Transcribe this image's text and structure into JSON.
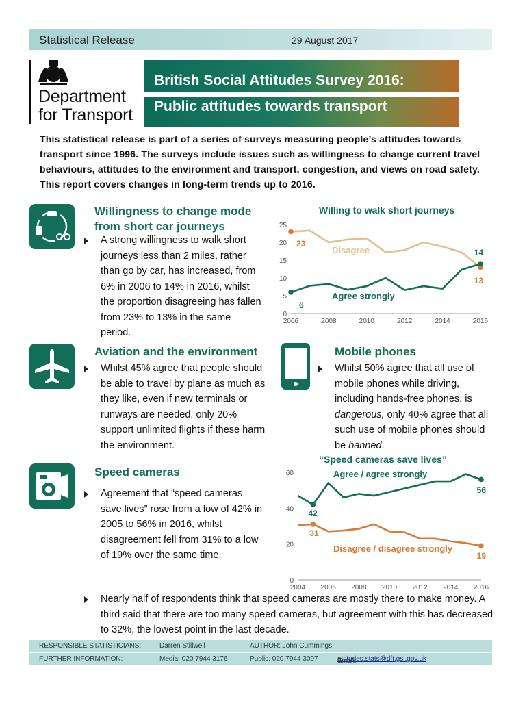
{
  "header": {
    "release": "Statistical Release",
    "date": "29 August 2017"
  },
  "logo": {
    "line1": "Department",
    "line2": "for Transport"
  },
  "title": {
    "line1": "British Social Attitudes Survey 2016:",
    "line2": "Public attitudes towards transport"
  },
  "intro": "This statistical release is part of a series of surveys measuring people’s attitudes towards transport since 1996. The surveys include issues such as willingness to change current travel behaviours, attitudes to the environment and transport, congestion, and views on road safety. This report covers changes in long-term trends up to 2016.",
  "sections": {
    "mode": {
      "title": "Willingness to change mode from short car journeys",
      "bullet": "A strong willingness to walk short journeys less than 2 miles, rather than go by car, has increased, from 6% in 2006 to 14% in 2016, whilst the proportion disagreeing has fallen from 23% to 13% in the same period."
    },
    "aviation": {
      "title": "Aviation and the environment",
      "bullet": "Whilst 45% agree that people should be able to travel by plane as much as they like, even if new terminals or runways are needed, only 20% support unlimited flights if these harm the environment."
    },
    "mobile": {
      "title": "Mobile phones",
      "bullet_a": "Whilst 50% agree that all use of mobile phones while driving, including hands-free phones, is ",
      "em1": "dangerous,",
      "bullet_b": " only 40% agree that all such use of mobile phones should be ",
      "em2": "banned",
      "bullet_c": "."
    },
    "speed": {
      "title": "Speed cameras",
      "bullet": "Agreement that “speed cameras save lives” rose from a low of 42% in 2005 to 56% in 2016, whilst disagreement fell from 31% to a low of 19% over the same time."
    },
    "final": "Nearly half of respondents think that speed cameras are mostly there to make money. A third said that there are too many speed cameras, but agreement with this has decreased to 32%, the lowest point in the last decade."
  },
  "footer": {
    "resp_label": "RESPONSIBLE STATISTICIANS:",
    "resp_name": "Darren Stillwell",
    "author": "AUTHOR: John Cummings",
    "info_label": "FURTHER INFORMATION:",
    "media": "Media: 020 7944 3176",
    "public": "Public: 020 7944 3097",
    "email_label": "Email: ",
    "email": "attitudes.stats@dft.gsi.gov.uk"
  },
  "colors": {
    "green": "#136e59",
    "orange": "#d77b36",
    "tan": "#e3c08a"
  },
  "chart_data": [
    {
      "type": "line",
      "title": "Willing to walk short journeys",
      "x": [
        2006,
        2007,
        2008,
        2009,
        2010,
        2011,
        2012,
        2013,
        2014,
        2015,
        2016
      ],
      "ylim": [
        0,
        25
      ],
      "yticks": [
        0,
        5,
        10,
        15,
        20,
        25
      ],
      "xticks": [
        2006,
        2008,
        2010,
        2012,
        2014,
        2016
      ],
      "series": [
        {
          "name": "Disagree",
          "values": [
            23,
            23.3,
            20,
            20.8,
            21.1,
            17.2,
            17.8,
            20,
            18.8,
            17.2,
            13
          ]
        },
        {
          "name": "Agree strongly",
          "values": [
            6,
            7.8,
            8.3,
            6.7,
            7.7,
            10,
            6.6,
            7.7,
            7,
            12.3,
            14
          ]
        }
      ],
      "labels": {
        "d_start": "23",
        "d_end": "13",
        "a_start": "6",
        "a_end": "14"
      }
    },
    {
      "type": "line",
      "title": "“Speed cameras save lives”",
      "x": [
        2004,
        2005,
        2006,
        2007,
        2008,
        2009,
        2010,
        2011,
        2012,
        2013,
        2014,
        2015,
        2016
      ],
      "ylim": [
        0,
        60
      ],
      "yticks": [
        0,
        20,
        40,
        60
      ],
      "xticks": [
        2004,
        2006,
        2008,
        2010,
        2012,
        2014,
        2016
      ],
      "series": [
        {
          "name": "Agree / agree strongly",
          "values": [
            47,
            42,
            54,
            46,
            48,
            47,
            49,
            51,
            53,
            55,
            55,
            59,
            56
          ]
        },
        {
          "name": "Disagree / disagree strongly",
          "values": [
            30.5,
            31,
            27,
            27.5,
            28.5,
            31,
            27,
            26.5,
            23,
            23,
            21.5,
            20.5,
            19
          ]
        }
      ],
      "labels": {
        "a_low": "42",
        "a_end": "56",
        "d_start": "31",
        "d_end": "19"
      }
    }
  ]
}
